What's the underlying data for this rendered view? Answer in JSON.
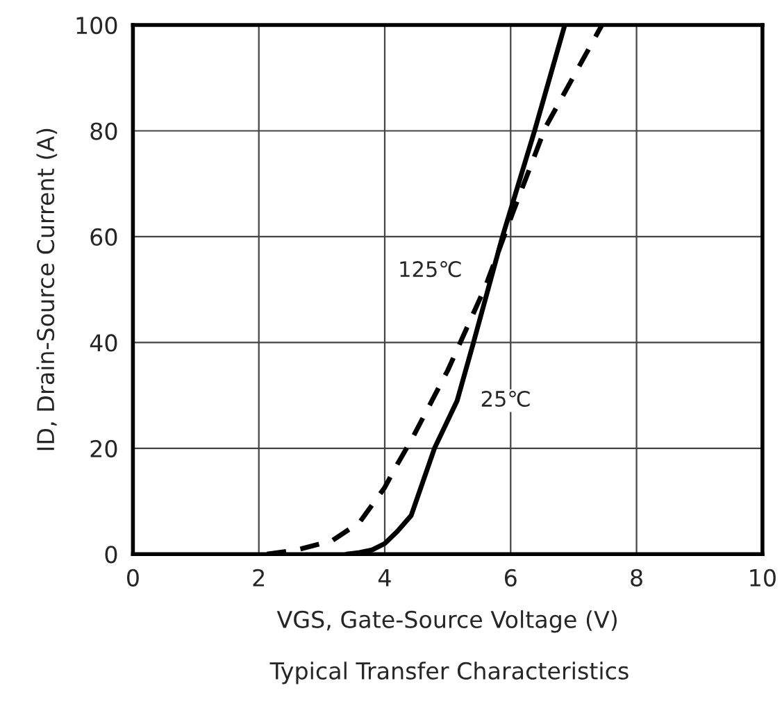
{
  "chart_data": {
    "type": "line",
    "title": "Typical Transfer Characteristics",
    "xlabel": "VGS, Gate-Source Voltage (V)",
    "ylabel": "ID, Drain-Source Current (A)",
    "series": [
      {
        "name": "25℃",
        "color": "#000000",
        "line_style": "solid",
        "x": [
          3.4,
          3.6,
          3.8,
          4.0,
          4.2,
          4.42,
          4.79,
          5.15,
          5.41,
          5.87,
          6.38,
          6.86
        ],
        "values": [
          0,
          0.3,
          0.8,
          2,
          4.3,
          7.3,
          20,
          29,
          40,
          60,
          80,
          100
        ]
      },
      {
        "name": "125℃",
        "color": "#000000",
        "line_style": "dashed",
        "x": [
          2.13,
          2.6,
          3.16,
          3.6,
          4.0,
          4.2,
          4.42,
          5.0,
          5.6,
          6.04,
          6.55,
          7.45
        ],
        "values": [
          0,
          0.8,
          2.5,
          6,
          12.6,
          17,
          21.5,
          34.7,
          50.6,
          64.7,
          80.6,
          100
        ]
      }
    ],
    "xlim": [
      0,
      10
    ],
    "ylim": [
      0,
      100
    ],
    "xticks": [
      0,
      2,
      4,
      6,
      8,
      10
    ],
    "yticks": [
      0,
      20,
      40,
      60,
      80,
      100
    ],
    "grid": true,
    "legend": false
  }
}
